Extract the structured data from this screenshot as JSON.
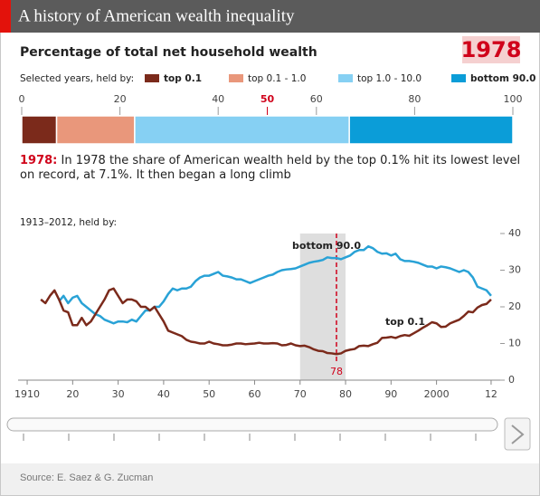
{
  "header": {
    "title": "A history of American wealth inequality"
  },
  "source": "Source: E. Saez & G. Zucman",
  "chart_data": [
    {
      "type": "bar",
      "orientation": "horizontal",
      "stacked": true,
      "title": "Percentage of total net household wealth",
      "selected": "1978",
      "legend_title": "Selected years, held by:",
      "series": [
        {
          "name": "top 0.1",
          "color": "#7b2a1b",
          "values": [
            7.1
          ]
        },
        {
          "name": "top 0.1 - 1.0",
          "color": "#e9977b",
          "values": [
            15.9
          ]
        },
        {
          "name": "top 1.0 - 10.0",
          "color": "#86d0f3",
          "values": [
            43.7
          ]
        },
        {
          "name": "bottom 90.0",
          "color": "#0b9dd8",
          "values": [
            33.3
          ]
        }
      ],
      "xlim": [
        0,
        100
      ],
      "xticks": [
        0,
        20,
        40,
        50,
        60,
        80,
        100
      ],
      "highlight_tick": 50,
      "annotation_label": "1978:",
      "annotation": "In 1978 the share of American wealth held by the top 0.1% hit its lowest level on record, at 7.1%. It then began a long climb"
    },
    {
      "type": "line",
      "subtitle": "1913–2012, held by:",
      "x": [
        1913,
        1914,
        1915,
        1916,
        1917,
        1918,
        1919,
        1920,
        1921,
        1922,
        1923,
        1924,
        1925,
        1926,
        1927,
        1928,
        1929,
        1930,
        1931,
        1932,
        1933,
        1934,
        1935,
        1936,
        1937,
        1938,
        1939,
        1940,
        1941,
        1942,
        1943,
        1944,
        1945,
        1946,
        1947,
        1948,
        1949,
        1950,
        1951,
        1952,
        1953,
        1954,
        1955,
        1956,
        1957,
        1958,
        1959,
        1960,
        1961,
        1962,
        1963,
        1964,
        1965,
        1966,
        1967,
        1968,
        1969,
        1970,
        1971,
        1972,
        1973,
        1974,
        1975,
        1976,
        1977,
        1978,
        1979,
        1980,
        1981,
        1982,
        1983,
        1984,
        1985,
        1986,
        1987,
        1988,
        1989,
        1990,
        1991,
        1992,
        1993,
        1994,
        1995,
        1996,
        1997,
        1998,
        1999,
        2000,
        2001,
        2002,
        2003,
        2004,
        2005,
        2006,
        2007,
        2008,
        2009,
        2010,
        2011,
        2012
      ],
      "series": [
        {
          "name": "bottom 90.0",
          "color": "#29a2d6",
          "axis": "y2",
          "values": [
            null,
            null,
            null,
            null,
            21.5,
            23,
            21,
            22.5,
            23,
            21,
            20,
            19,
            18,
            17.5,
            16.5,
            16,
            15.5,
            16,
            16,
            15.8,
            16.5,
            16,
            17.5,
            19,
            19,
            20,
            20,
            21.5,
            23.5,
            25,
            24.5,
            25,
            25,
            25.5,
            27,
            28,
            28.5,
            28.5,
            29,
            29.5,
            28.5,
            28.3,
            28,
            27.5,
            27.5,
            27,
            26.5,
            27,
            27.5,
            28,
            28.5,
            28.8,
            29.5,
            30,
            30.2,
            30.3,
            30.5,
            31,
            31.5,
            32,
            32.3,
            32.5,
            32.8,
            33.5,
            33.3,
            33.3,
            33,
            33.5,
            34,
            35,
            35.5,
            35.5,
            36.5,
            36,
            35,
            34.5,
            34.6,
            34,
            34.5,
            33,
            32.5,
            32.5,
            32.3,
            32,
            31.5,
            31,
            31,
            30.5,
            31,
            30.8,
            30.5,
            30,
            29.5,
            30,
            29.5,
            28,
            25.5,
            25,
            24.5,
            23
          ]
        },
        {
          "name": "top 0.1",
          "color": "#7b2a1b",
          "axis": "y2",
          "values": [
            22,
            21,
            23,
            24.5,
            22,
            19,
            18.5,
            15,
            15,
            17,
            15,
            16,
            18,
            20,
            22,
            24.5,
            25,
            23,
            21,
            22,
            22,
            21.5,
            20,
            20,
            19,
            20,
            18,
            16,
            13.5,
            13,
            12.5,
            12,
            11,
            10.5,
            10.3,
            10,
            10,
            10.5,
            10,
            9.8,
            9.5,
            9.5,
            9.7,
            10,
            10,
            9.8,
            9.9,
            10,
            10.2,
            10,
            10,
            10.1,
            10,
            9.5,
            9.6,
            10,
            9.5,
            9.3,
            9.4,
            9,
            8.4,
            8,
            7.9,
            7.4,
            7.3,
            7.1,
            7.3,
            8,
            8.3,
            8.5,
            9.3,
            9.4,
            9.3,
            9.8,
            10.2,
            11.5,
            11.6,
            11.8,
            11.5,
            12,
            12.3,
            12.1,
            12.8,
            13.5,
            14.3,
            15,
            15.8,
            15.5,
            14.5,
            14.6,
            15.5,
            16,
            16.5,
            17.5,
            18.7,
            18.5,
            19.8,
            20.5,
            20.8,
            22
          ]
        }
      ],
      "xlim": [
        1908,
        2014
      ],
      "xticks": [
        1910,
        {
          "value": 1920,
          "label": "20"
        },
        {
          "value": 1930,
          "label": "30"
        },
        {
          "value": 1940,
          "label": "40"
        },
        {
          "value": 1950,
          "label": "50"
        },
        {
          "value": 1960,
          "label": "60"
        },
        {
          "value": 1970,
          "label": "70"
        },
        {
          "value": 1980,
          "label": "80"
        },
        {
          "value": 1990,
          "label": "90"
        },
        2000,
        {
          "value": 2012,
          "label": "12"
        }
      ],
      "y2lim": [
        0,
        40
      ],
      "y2ticks": [
        0,
        10,
        20,
        30,
        40
      ],
      "highlight_band": [
        1970,
        1980
      ],
      "marker": {
        "value": 1978,
        "label": "78"
      }
    }
  ]
}
